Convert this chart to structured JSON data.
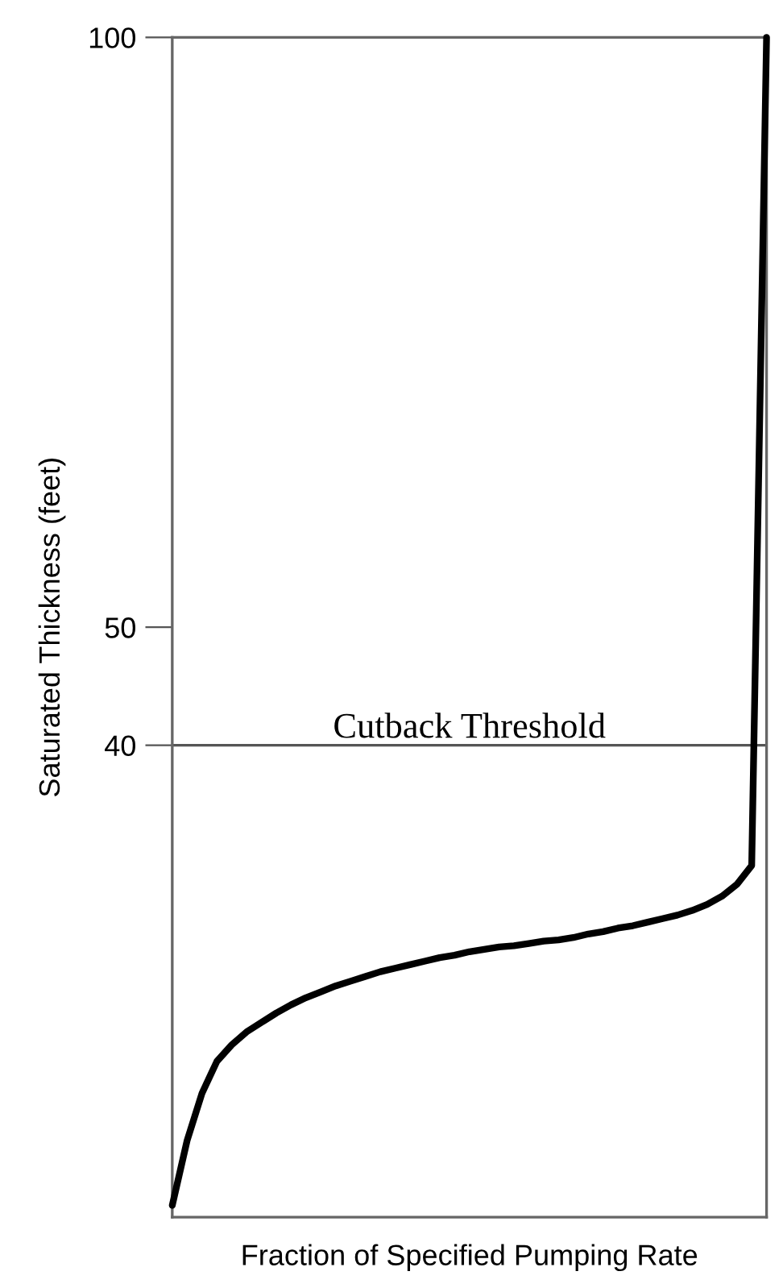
{
  "chart_data": {
    "type": "line",
    "xlabel": "Fraction of Specified Pumping Rate",
    "ylabel": "Saturated Thickness (feet)",
    "categories": [
      null,
      null,
      null,
      null,
      null,
      null,
      null,
      null,
      null,
      null,
      null,
      null,
      null,
      null,
      null,
      null,
      null,
      null,
      null,
      null,
      null,
      null,
      null,
      null,
      null,
      null,
      null,
      null,
      null,
      null,
      null,
      null,
      null,
      null,
      null,
      null,
      null,
      null,
      null,
      null,
      null
    ],
    "series": [
      {
        "color": "#000000",
        "values": [
          1,
          6.5,
          10.5,
          13.2,
          14.6,
          15.7,
          16.5,
          17.3,
          18,
          18.6,
          19.1,
          19.6,
          20,
          20.4,
          20.8,
          21.1,
          21.4,
          21.7,
          22,
          22.2,
          22.5,
          22.7,
          22.9,
          23,
          23.2,
          23.4,
          23.5,
          23.7,
          24,
          24.2,
          24.5,
          24.7,
          25,
          25.3,
          25.6,
          26,
          26.5,
          27.2,
          28.2,
          29.8,
          100
        ]
      }
    ],
    "ylim": [
      0,
      100
    ],
    "yticks": [
      40,
      50,
      100
    ],
    "tick_labels": "y",
    "grid": false,
    "legend": false,
    "marker": "none",
    "line_style": "solid",
    "ref_lines": [
      {
        "axis": "y",
        "value": 40,
        "label": "Cutback Threshold",
        "color": "#555555"
      }
    ]
  }
}
